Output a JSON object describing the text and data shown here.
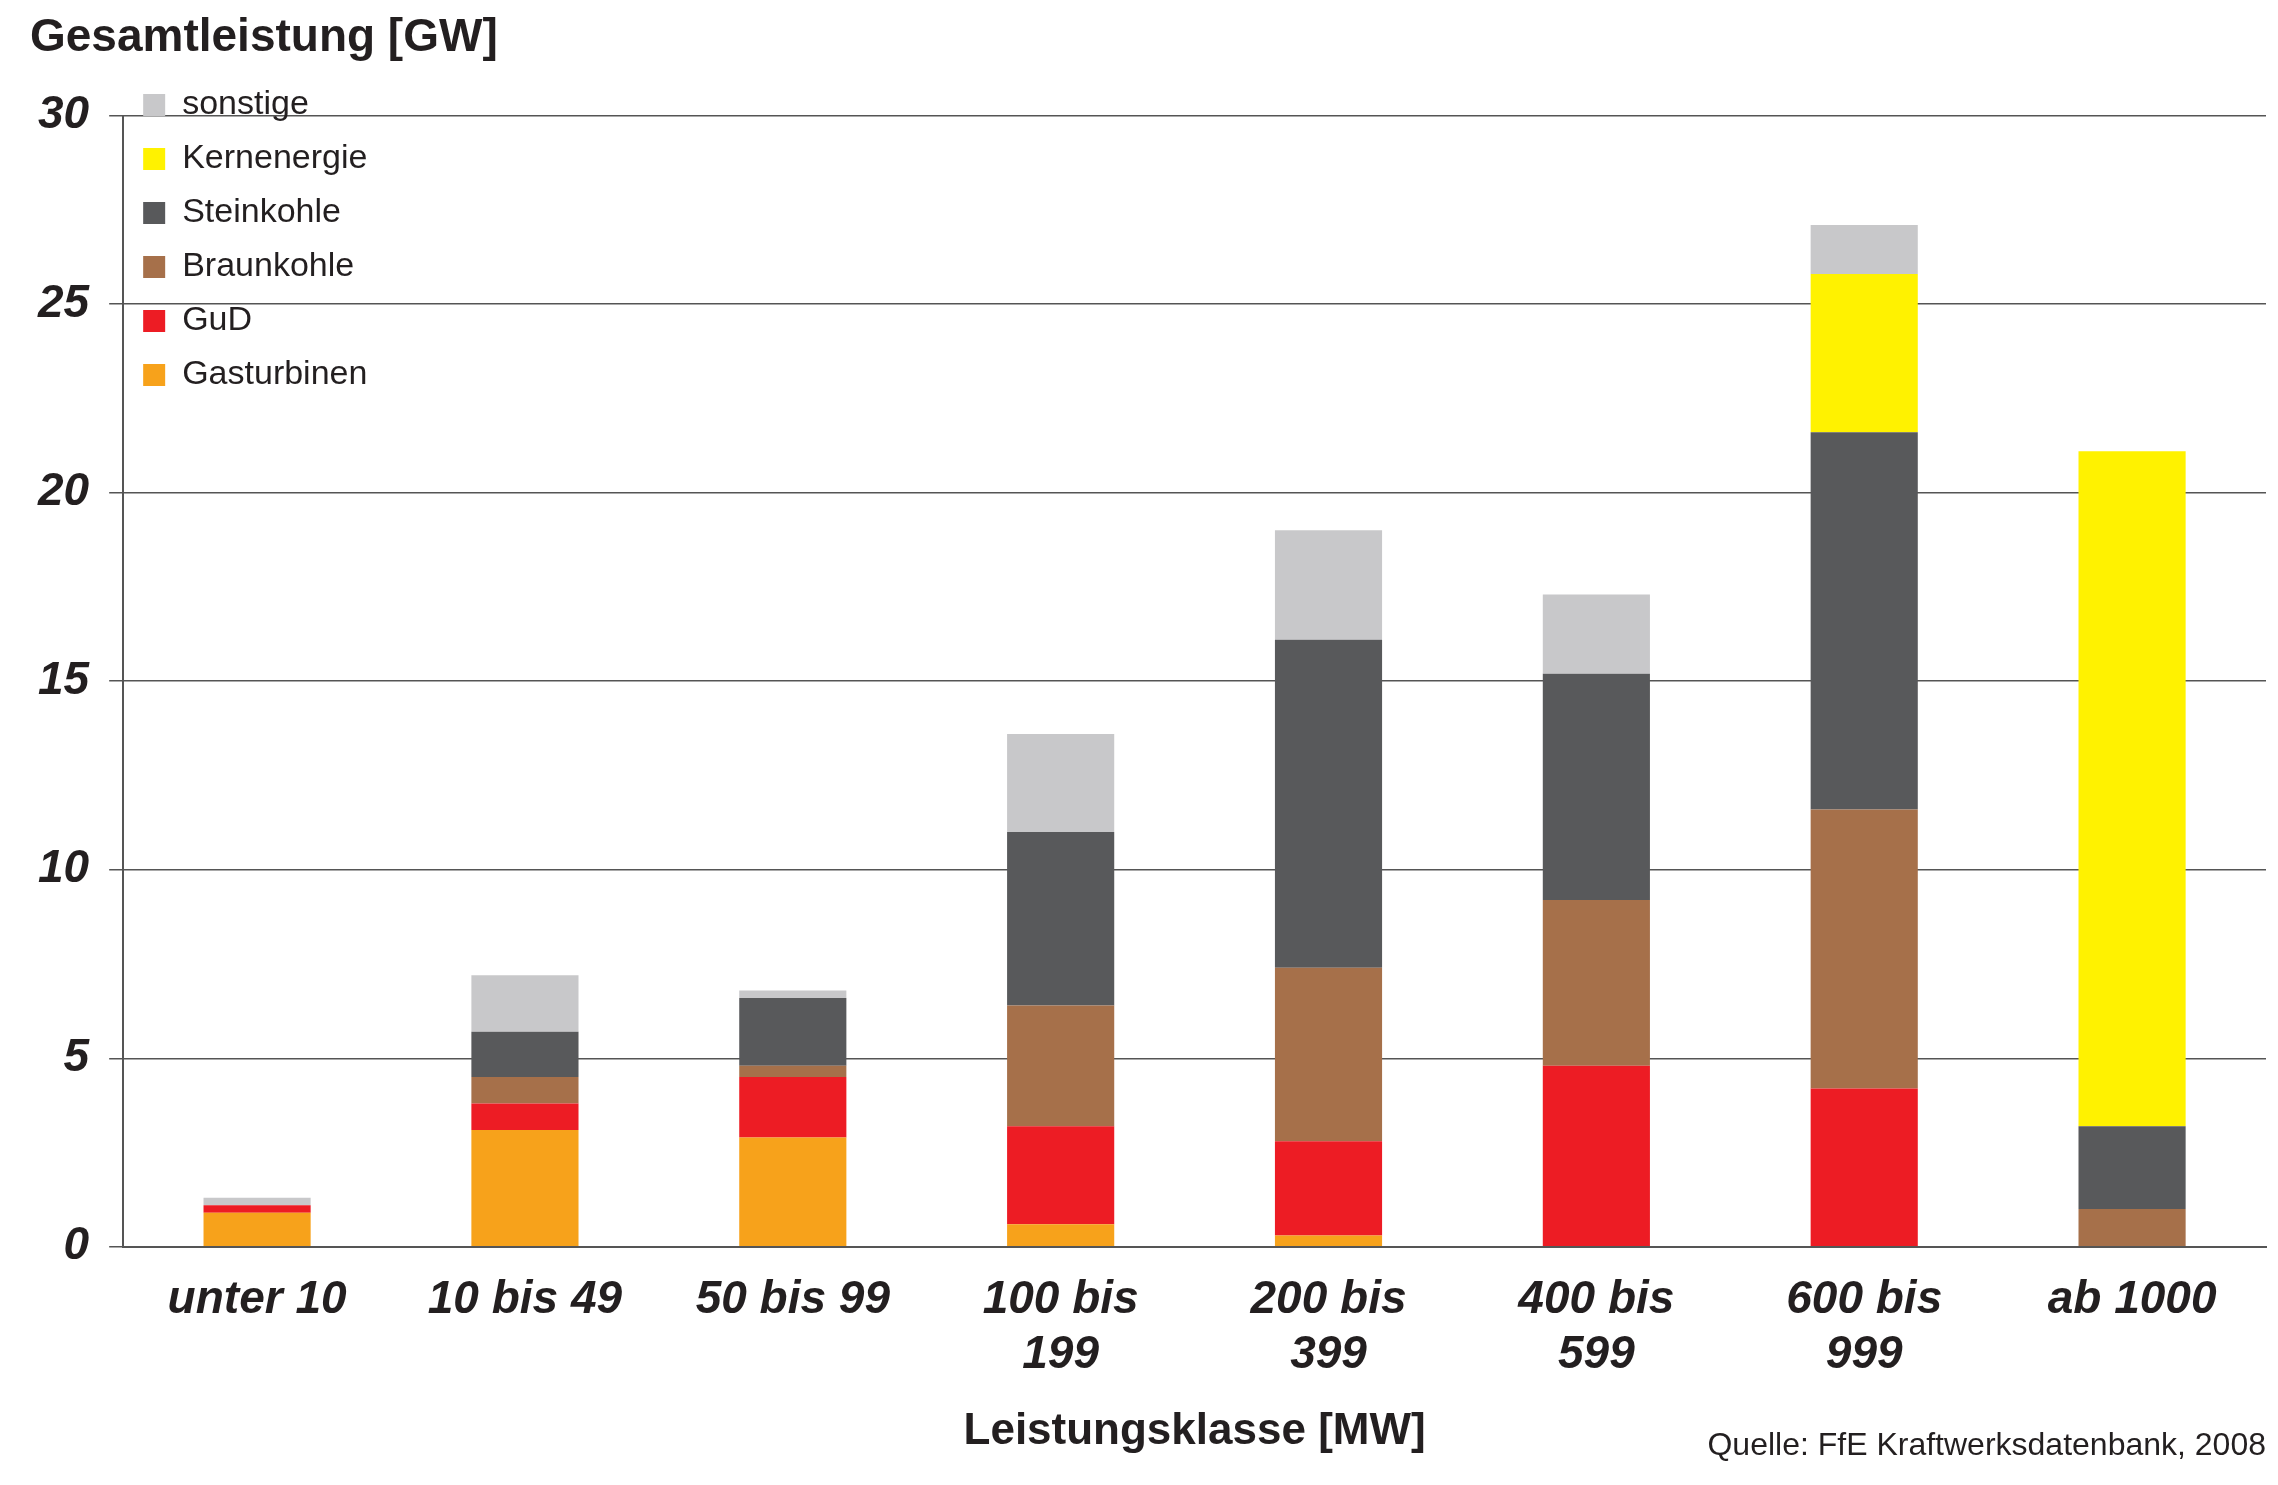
{
  "chart_data": {
    "type": "bar",
    "stacked": true,
    "ylabel": "Gesamtleistung [GW]",
    "xlabel": "Leistungsklasse [MW]",
    "annotations": [
      "Quelle: FfE Kraftwerksdatenbank, 2008"
    ],
    "categories": [
      "unter 10",
      "10 bis 49",
      "50 bis 99",
      "100 bis 199",
      "200 bis 399",
      "400 bis 599",
      "600 bis 999",
      "ab 1000"
    ],
    "series": [
      {
        "name": "Gasturbinen",
        "color": "#f7a21b",
        "values": [
          0.9,
          3.1,
          2.9,
          0.6,
          0.3,
          0,
          0,
          0
        ]
      },
      {
        "name": "GuD",
        "color": "#ed1c24",
        "values": [
          0.2,
          0.7,
          1.6,
          2.6,
          2.5,
          4.8,
          4.2,
          0
        ]
      },
      {
        "name": "Braunkohle",
        "color": "#a6704a",
        "values": [
          0,
          0.7,
          0.3,
          3.2,
          4.6,
          4.4,
          7.4,
          1.0
        ]
      },
      {
        "name": "Steinkohle",
        "color": "#58595b",
        "values": [
          0,
          1.2,
          1.8,
          4.6,
          8.7,
          6.0,
          10.0,
          2.2
        ]
      },
      {
        "name": "Kernenergie",
        "color": "#fff200",
        "values": [
          0,
          0,
          0,
          0,
          0,
          0,
          4.2,
          17.9
        ]
      },
      {
        "name": "sonstige",
        "color": "#c8c8ca",
        "values": [
          0.2,
          1.5,
          0.2,
          2.6,
          2.9,
          2.1,
          1.3,
          0
        ]
      }
    ],
    "ylim": [
      0,
      30
    ],
    "yticks": [
      0,
      5,
      10,
      15,
      20,
      25,
      30
    ],
    "grid": "y",
    "legend": "top left"
  }
}
